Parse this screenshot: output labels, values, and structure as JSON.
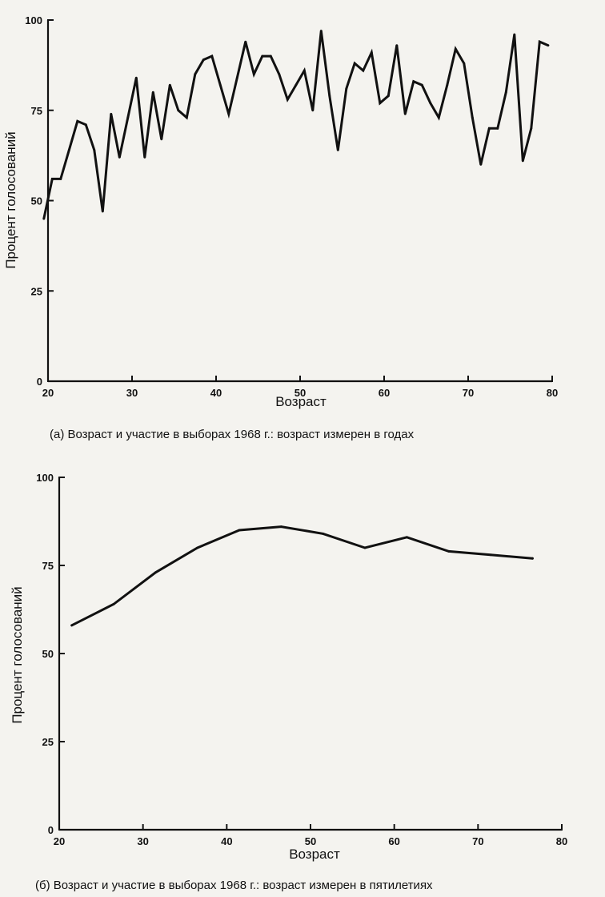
{
  "chart_data": [
    {
      "type": "line",
      "title": "",
      "caption": "(а)  Возраст и участие в выборах 1968 г.: возраст измерен в годах",
      "xlabel": "Возраст",
      "ylabel": "Процент голосований",
      "xlim": [
        20,
        80
      ],
      "ylim": [
        0,
        100
      ],
      "xticks": [
        "20",
        "30",
        "40",
        "50",
        "60",
        "70",
        "80"
      ],
      "yticks": [
        "0",
        "25",
        "50",
        "75",
        "100"
      ],
      "grid": false,
      "series": [
        {
          "x": [
            19.5,
            20.5,
            21.5,
            22.5,
            23.5,
            24.5,
            25.5,
            26.5,
            27.5,
            28.5,
            29.5,
            30.5,
            31.5,
            32.5,
            33.5,
            34.5,
            35.5,
            36.5,
            37.5,
            38.5,
            39.5,
            40.5,
            41.5,
            42.5,
            43.5,
            44.5,
            45.5,
            46.5,
            47.5,
            48.5,
            49.5,
            50.5,
            51.5,
            52.5,
            53.5,
            54.5,
            55.5,
            56.5,
            57.5,
            58.5,
            59.5,
            60.5,
            61.5,
            62.5,
            63.5,
            64.5,
            65.5,
            66.5,
            67.5,
            68.5,
            69.5,
            70.5,
            71.5,
            72.5,
            73.5,
            74.5,
            75.5,
            76.5,
            77.5,
            78.5,
            79.5
          ],
          "values": [
            45,
            56,
            56,
            64,
            72,
            71,
            64,
            47,
            74,
            62,
            73,
            84,
            62,
            80,
            67,
            82,
            75,
            73,
            85,
            89,
            90,
            82,
            74,
            84,
            94,
            85,
            90,
            90,
            85,
            78,
            82,
            86,
            75,
            97,
            79,
            64,
            81,
            88,
            86,
            91,
            77,
            79,
            93,
            74,
            83,
            82,
            77,
            73,
            82,
            92,
            88,
            73,
            60,
            70,
            70,
            80,
            96,
            61,
            70,
            94,
            93
          ]
        }
      ]
    },
    {
      "type": "line",
      "title": "",
      "caption": "(б)  Возраст и участие в выборах 1968 г.: возраст измерен в пятилетиях",
      "xlabel": "Возраст",
      "ylabel": "Процент голосований",
      "xlim": [
        20,
        80
      ],
      "ylim": [
        0,
        100
      ],
      "xticks": [
        "20",
        "30",
        "40",
        "50",
        "60",
        "70",
        "80"
      ],
      "yticks": [
        "0",
        "25",
        "50",
        "75",
        "100"
      ],
      "grid": false,
      "series": [
        {
          "x": [
            21.5,
            26.5,
            31.5,
            36.5,
            41.5,
            46.5,
            51.5,
            56.5,
            61.5,
            66.5,
            71.5,
            76.5
          ],
          "values": [
            58,
            64,
            73,
            80,
            85,
            86,
            84,
            80,
            83,
            79,
            78,
            77
          ]
        }
      ]
    }
  ]
}
